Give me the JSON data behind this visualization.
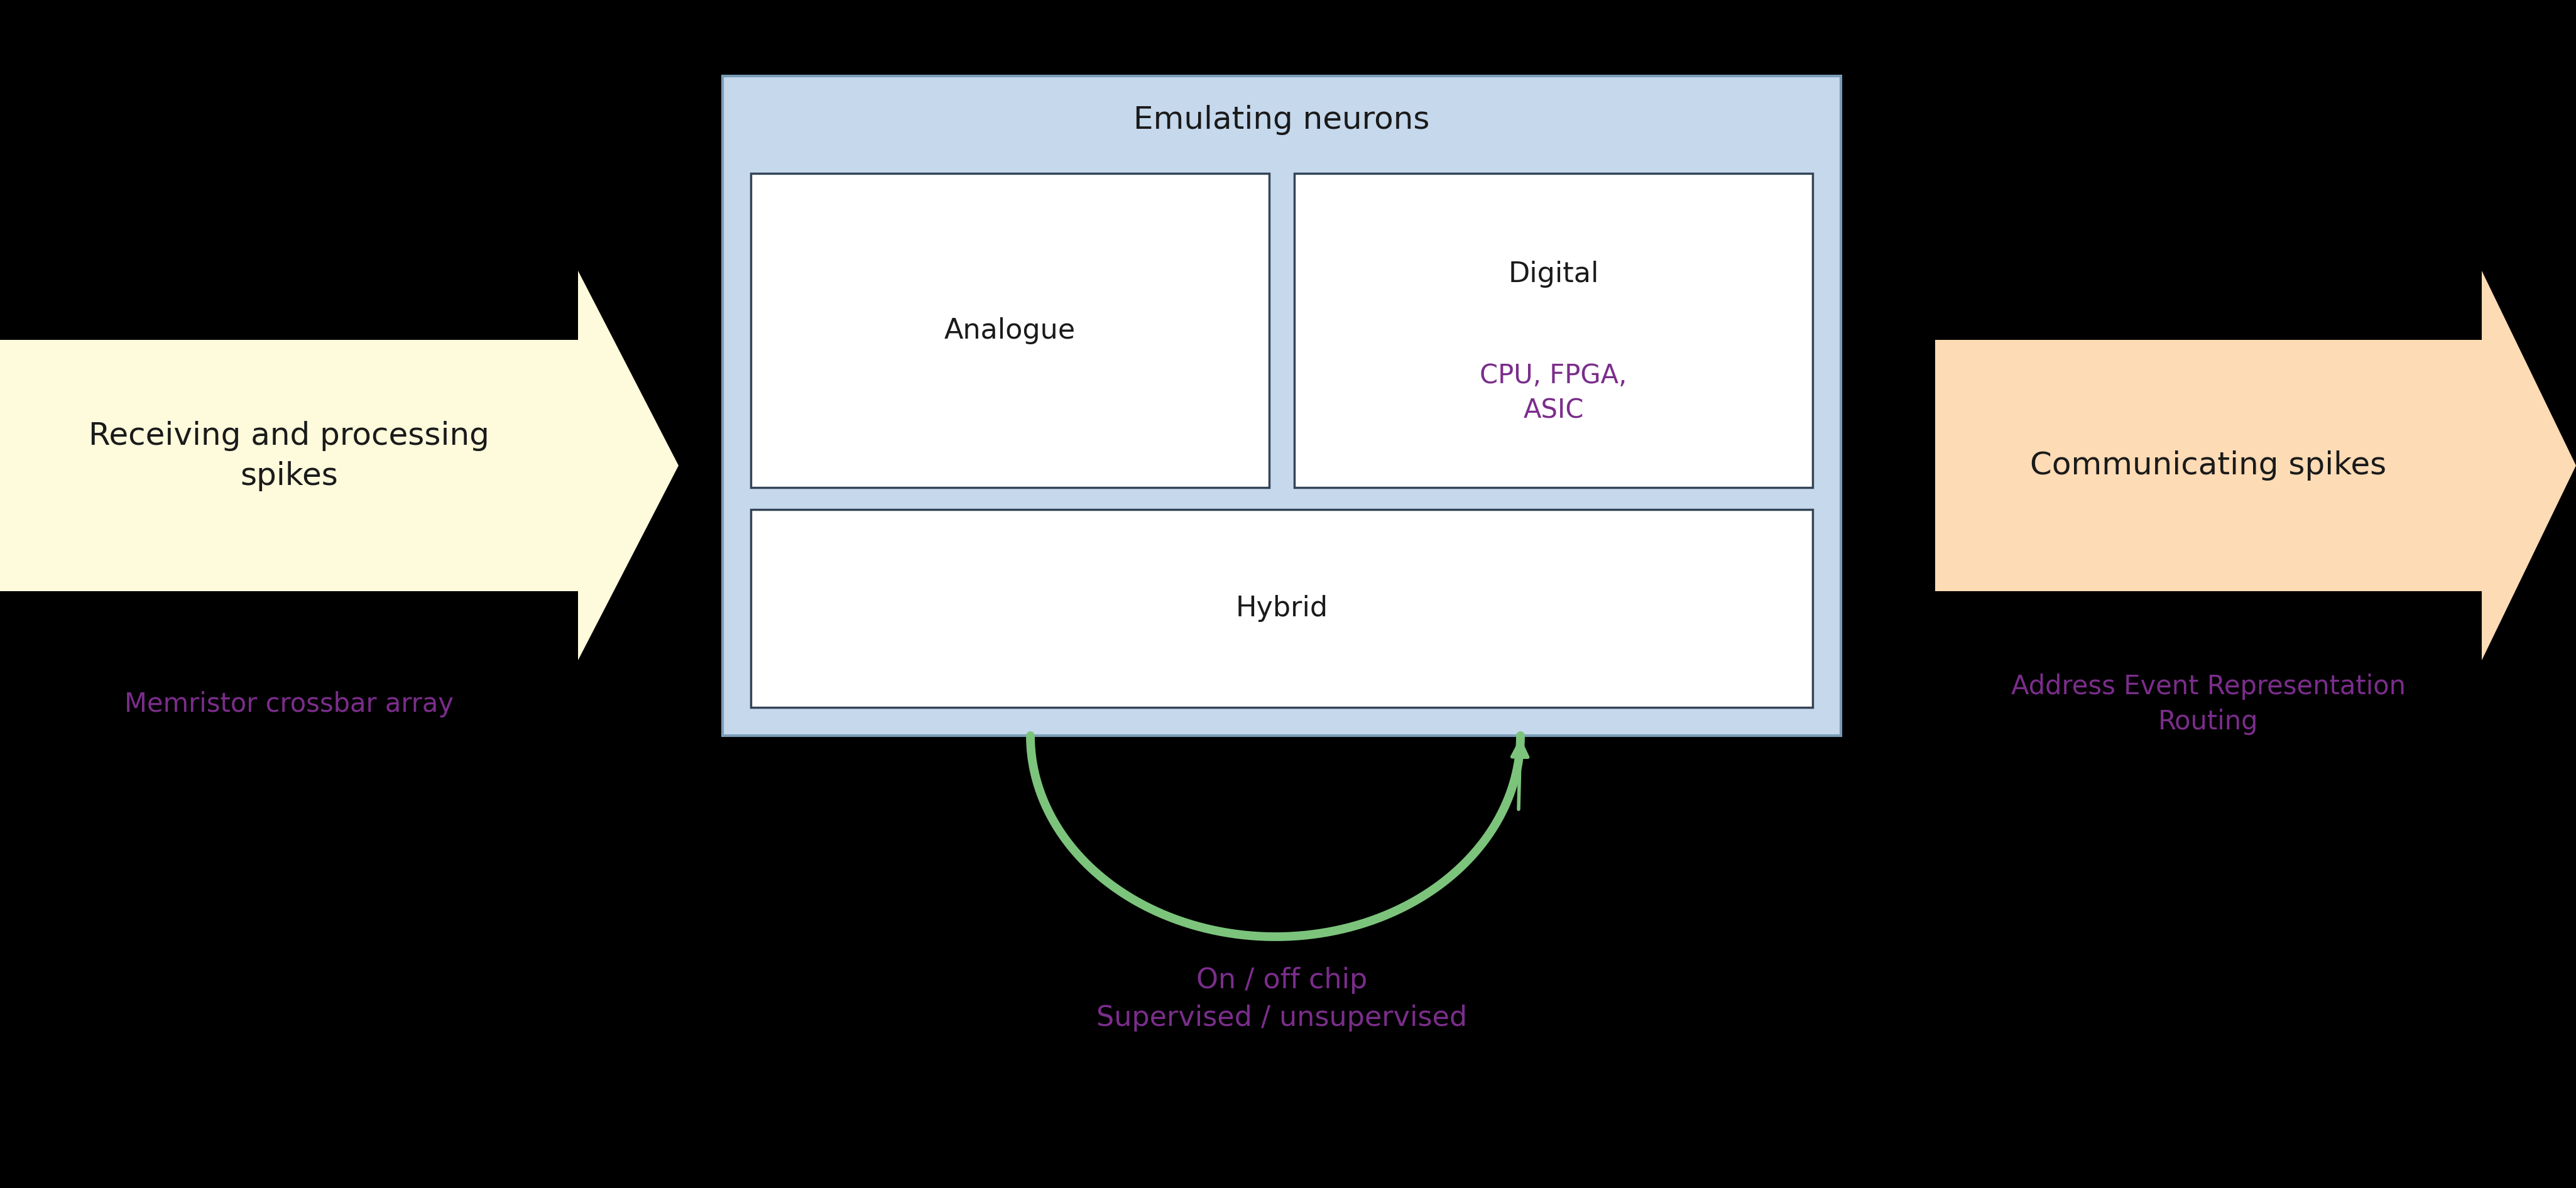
{
  "bg_color": "#000000",
  "arrow_color_left": "#FEFADC",
  "arrow_color_right": "#FDDBB5",
  "center_box_color": "#C5D8EC",
  "inner_box_color": "#FFFFFF",
  "text_color_dark": "#1a1a1a",
  "text_color_purple": "#7B2D8B",
  "left_arrow_text": "Receiving and processing\nspikes",
  "left_arrow_subtext": "Memristor crossbar array",
  "right_arrow_text": "Communicating spikes",
  "right_arrow_subtext": "Address Event Representation\nRouting",
  "center_title": "Emulating neurons",
  "box1_label": "Analogue",
  "box2_label": "Digital",
  "box2_sublabel": "CPU, FPGA,\nASIC",
  "box3_label": "Hybrid",
  "bottom_text": "On / off chip\nSupervised / unsupervised",
  "green_color": "#7CC47C",
  "figw": 41.0,
  "figh": 18.91
}
